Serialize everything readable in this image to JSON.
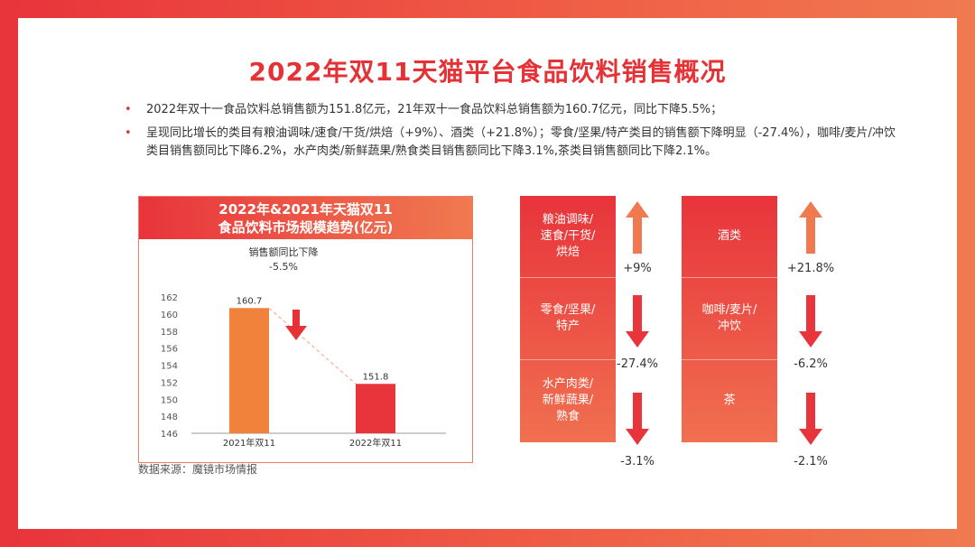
{
  "title": "2022年双11天猫平台食品饮料销售概况",
  "bullets": [
    "2022年双十一食品饮料总销售额为151.8亿元，21年双十一食品饮料总销售额为160.7亿元，同比下降5.5%；",
    "呈现同比增长的类目有粮油调味/速食/干货/烘焙（+9%）、酒类（+21.8%）；零食/坚果/特产类目的销售额下降明显（-27.4%），咖啡/麦片/冲饮类目销售额同比下降6.2%，水产肉类/新鲜蔬果/熟食类目销售额同比下降3.1%,茶类目销售额同比下降2.1%。"
  ],
  "chart_box": {
    "title_line1": "2022年&2021年天猫双11",
    "title_line2": "食品饮料市场规模趋势(亿元)",
    "annotation_line1": "销售额同比下降",
    "annotation_line2": "-5.5%"
  },
  "source": "数据来源：魔镜市场情报",
  "colors": {
    "bar_2021": "#f0823b",
    "bar_2022": "#e8343b",
    "accent": "#e53236"
  },
  "chart_data": {
    "type": "bar",
    "title": "2022年&2021年天猫双11 食品饮料市场规模趋势(亿元)",
    "categories": [
      "2021年双11",
      "2022年双11"
    ],
    "values": [
      160.7,
      151.8
    ],
    "value_labels": [
      "160.7",
      "151.8"
    ],
    "ylim": [
      146,
      162
    ],
    "yticks": [
      146,
      148,
      150,
      152,
      154,
      156,
      158,
      160,
      162
    ],
    "xlabel": "",
    "ylabel": ""
  },
  "categories_left": [
    {
      "label_lines": [
        "粮油调味/",
        "速食/干货/",
        "烘焙"
      ],
      "change": "+9%",
      "direction": "up"
    },
    {
      "label_lines": [
        "零食/坚果/",
        "特产"
      ],
      "change": "-27.4%",
      "direction": "down"
    },
    {
      "label_lines": [
        "水产肉类/",
        "新鲜蔬果/",
        "熟食"
      ],
      "change": "-3.1%",
      "direction": "down"
    }
  ],
  "categories_right": [
    {
      "label_lines": [
        "酒类"
      ],
      "change": "+21.8%",
      "direction": "up"
    },
    {
      "label_lines": [
        "咖啡/麦片/",
        "冲饮"
      ],
      "change": "-6.2%",
      "direction": "down"
    },
    {
      "label_lines": [
        "茶"
      ],
      "change": "-2.1%",
      "direction": "down"
    }
  ]
}
